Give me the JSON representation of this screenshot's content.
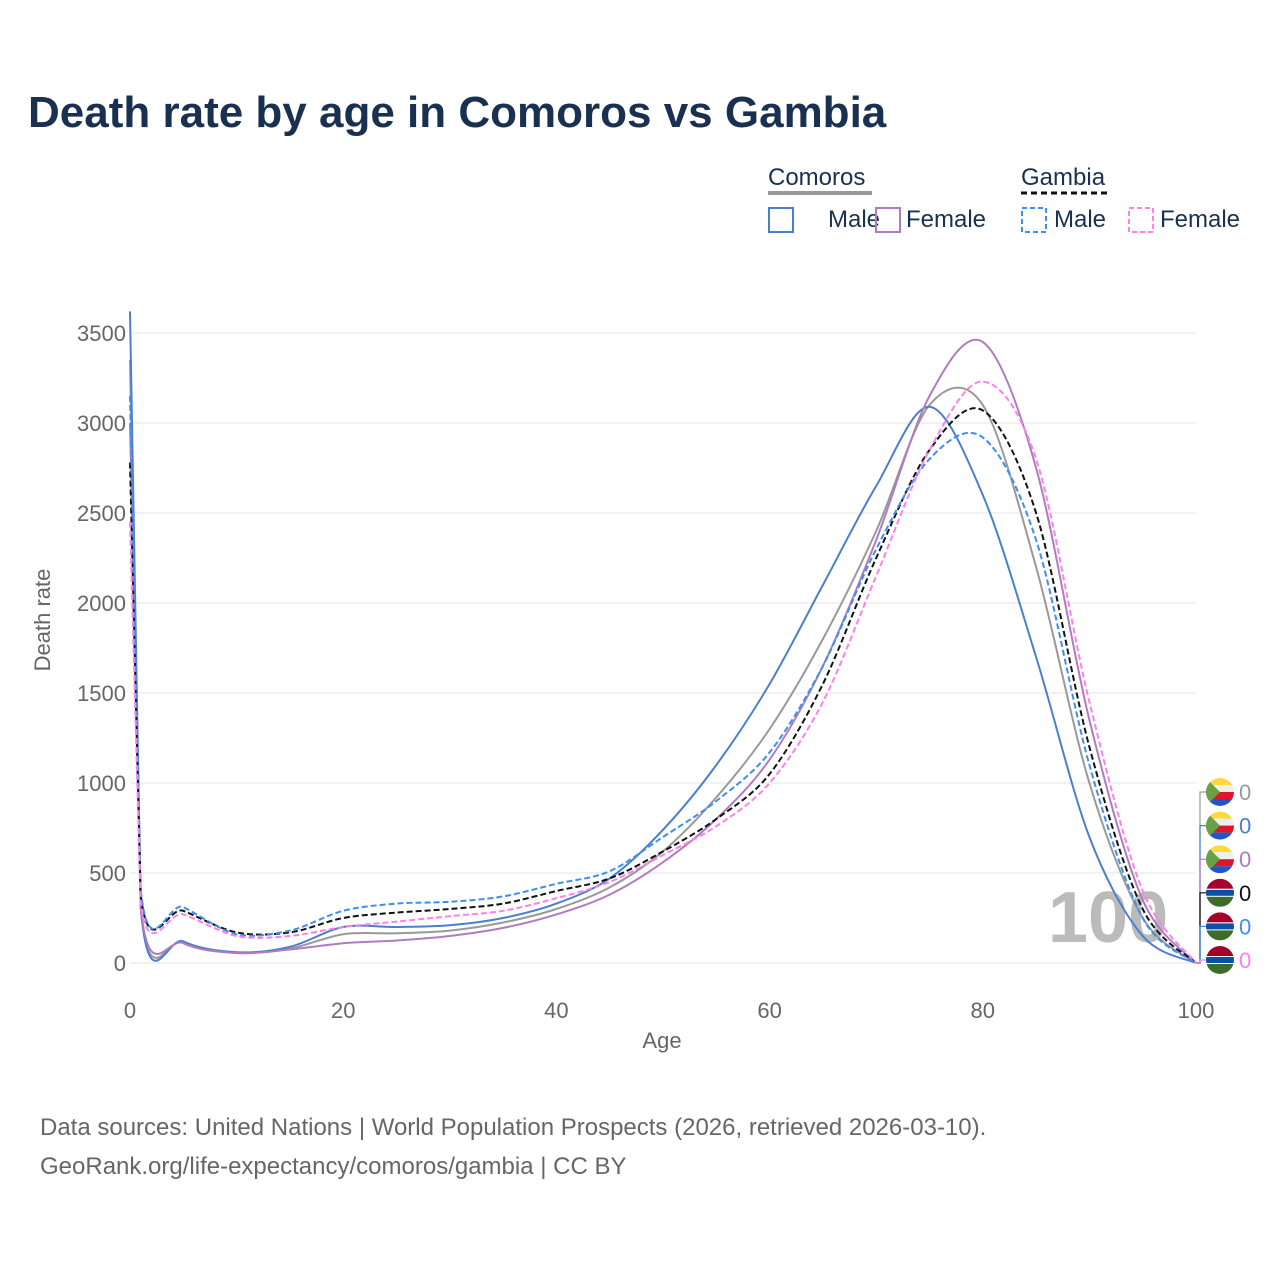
{
  "title": "Death rate by age in Comoros vs Gambia",
  "legend": {
    "groups": [
      {
        "name": "Comoros",
        "items": [
          "Male",
          "Female"
        ]
      },
      {
        "name": "Gambia",
        "items": [
          "Male",
          "Female"
        ]
      }
    ]
  },
  "watermark": "100",
  "source_line1": "Data sources: United Nations | World Population Prospects (2026, retrieved 2026-03-10).",
  "source_line2": "GeoRank.org/life-expectancy/comoros/gambia | CC BY",
  "chart_data": {
    "type": "line",
    "title": "Death rate by age in Comoros vs Gambia",
    "xlabel": "Age",
    "ylabel": "Death rate",
    "xlim": [
      0,
      100
    ],
    "ylim": [
      0,
      3500
    ],
    "xticks": [
      0,
      20,
      40,
      60,
      80,
      100
    ],
    "yticks": [
      0,
      500,
      1000,
      1500,
      2000,
      2500,
      3000,
      3500
    ],
    "x": [
      0,
      1,
      5,
      10,
      15,
      20,
      25,
      30,
      35,
      40,
      45,
      50,
      55,
      60,
      65,
      70,
      75,
      80,
      85,
      90,
      95,
      100
    ],
    "series": [
      {
        "name": "Comoros",
        "color": "#999999",
        "dash": false,
        "flag": "comoros",
        "end_label": "0",
        "values": [
          3350,
          310,
          115,
          58,
          80,
          160,
          165,
          180,
          225,
          300,
          420,
          620,
          920,
          1300,
          1800,
          2400,
          3100,
          3100,
          2200,
          1000,
          250,
          0
        ]
      },
      {
        "name": "Comoros Male",
        "color": "#4a7fd0",
        "dash": false,
        "flag": "comoros",
        "end_label": "0",
        "values": [
          3620,
          310,
          120,
          60,
          90,
          200,
          200,
          210,
          250,
          330,
          470,
          740,
          1100,
          1550,
          2100,
          2650,
          3090,
          2600,
          1700,
          700,
          150,
          0
        ]
      },
      {
        "name": "Comoros Female",
        "color": "#b07cc0",
        "dash": false,
        "flag": "comoros",
        "end_label": "0",
        "values": [
          3000,
          310,
          110,
          55,
          75,
          110,
          125,
          150,
          195,
          270,
          380,
          560,
          800,
          1130,
          1650,
          2350,
          3150,
          3450,
          2750,
          1350,
          350,
          0
        ]
      },
      {
        "name": "Gambia",
        "color": "#111111",
        "dash": true,
        "flag": "gambia",
        "end_label": "0",
        "values": [
          2780,
          380,
          290,
          170,
          170,
          250,
          280,
          300,
          330,
          400,
          470,
          620,
          800,
          1050,
          1550,
          2250,
          2850,
          3070,
          2500,
          1200,
          300,
          0
        ]
      },
      {
        "name": "Gambia Male",
        "color": "#3f8ff0",
        "dash": true,
        "flag": "gambia",
        "end_label": "0",
        "values": [
          3150,
          410,
          310,
          160,
          180,
          290,
          330,
          340,
          370,
          440,
          510,
          700,
          900,
          1170,
          1650,
          2300,
          2800,
          2920,
          2350,
          1100,
          250,
          0
        ]
      },
      {
        "name": "Gambia Female",
        "color": "#ff80e8",
        "dash": true,
        "flag": "gambia",
        "end_label": "0",
        "values": [
          2450,
          330,
          270,
          150,
          150,
          200,
          230,
          260,
          290,
          360,
          450,
          600,
          760,
          1000,
          1450,
          2150,
          2850,
          3230,
          2800,
          1450,
          400,
          0
        ]
      }
    ]
  }
}
